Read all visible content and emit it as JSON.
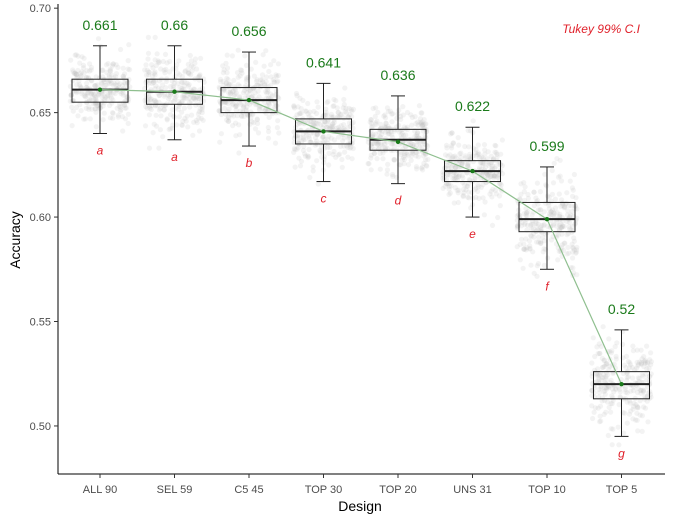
{
  "chart_data": {
    "type": "boxplot",
    "xlabel": "Design",
    "ylabel": "Accuracy",
    "ylim": [
      0.477,
      0.702
    ],
    "yticks": [
      0.5,
      0.55,
      0.6,
      0.65,
      0.7
    ],
    "ytick_labels": [
      "0.50",
      "0.55",
      "0.60",
      "0.65",
      "0.70"
    ],
    "annotation": "Tukey 99% C.I",
    "grid": false,
    "colors": {
      "mean": "#1a7a1a",
      "mean_line": "#8fbf8f",
      "group_label": "#e0202a",
      "box": "#222222",
      "jitter": "#bdbdbd"
    },
    "categories": [
      "ALL 90",
      "SEL 59",
      "C5 45",
      "TOP 30",
      "TOP 20",
      "UNS 31",
      "TOP 10",
      "TOP 5"
    ],
    "means": [
      0.661,
      0.66,
      0.656,
      0.641,
      0.636,
      0.622,
      0.599,
      0.52
    ],
    "mean_labels": [
      "0.661",
      "0.66",
      "0.656",
      "0.641",
      "0.636",
      "0.622",
      "0.599",
      "0.52"
    ],
    "groups": [
      "a",
      "a",
      "b",
      "c",
      "d",
      "e",
      "f",
      "g"
    ],
    "boxes": [
      {
        "min": 0.64,
        "q1": 0.655,
        "median": 0.661,
        "q3": 0.666,
        "max": 0.682
      },
      {
        "min": 0.637,
        "q1": 0.654,
        "median": 0.66,
        "q3": 0.666,
        "max": 0.682
      },
      {
        "min": 0.634,
        "q1": 0.65,
        "median": 0.656,
        "q3": 0.662,
        "max": 0.679
      },
      {
        "min": 0.617,
        "q1": 0.635,
        "median": 0.641,
        "q3": 0.647,
        "max": 0.664
      },
      {
        "min": 0.616,
        "q1": 0.632,
        "median": 0.637,
        "q3": 0.642,
        "max": 0.658
      },
      {
        "min": 0.6,
        "q1": 0.617,
        "median": 0.622,
        "q3": 0.627,
        "max": 0.643
      },
      {
        "min": 0.575,
        "q1": 0.593,
        "median": 0.599,
        "q3": 0.607,
        "max": 0.624
      },
      {
        "min": 0.495,
        "q1": 0.513,
        "median": 0.52,
        "q3": 0.526,
        "max": 0.546
      }
    ]
  }
}
